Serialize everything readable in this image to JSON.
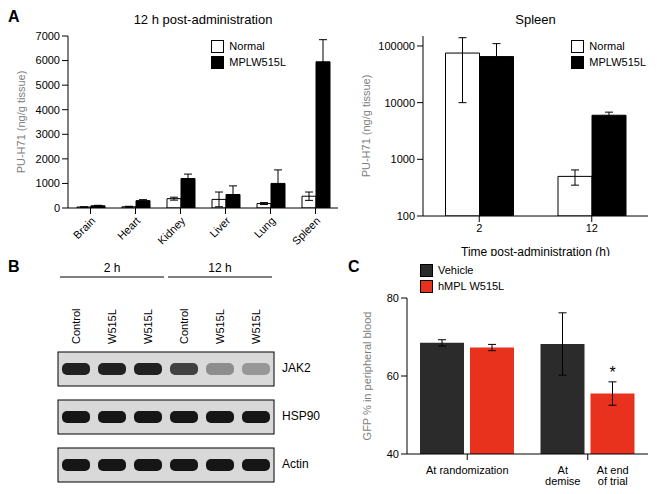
{
  "chart_data": [
    {
      "panel": "A",
      "type": "bar",
      "title": "12 h post-administration",
      "y_label": "PU-H71 (ng/g tissue)",
      "categories": [
        "Brain",
        "Heart",
        "Kidney",
        "Liver",
        "Lung",
        "Spleen"
      ],
      "series": [
        {
          "name": "Normal",
          "color": "#ffffff",
          "values": [
            40,
            50,
            380,
            350,
            180,
            480
          ],
          "errors": [
            10,
            20,
            60,
            300,
            40,
            170
          ]
        },
        {
          "name": "MPLW515L",
          "color": "#000000",
          "values": [
            90,
            300,
            1200,
            550,
            1000,
            5950
          ],
          "errors": [
            20,
            40,
            180,
            350,
            550,
            900
          ]
        }
      ],
      "ylim": [
        0,
        7000
      ],
      "yticks": [
        0,
        1000,
        2000,
        3000,
        4000,
        5000,
        6000,
        7000
      ],
      "legend": "upper right"
    },
    {
      "type": "bar",
      "title": "Spleen",
      "x_label": "Time post-administration (h)",
      "y_label": "PU-H71 (ng/g tissue)",
      "categories": [
        "2",
        "12"
      ],
      "series": [
        {
          "name": "Normal",
          "color": "#ffffff",
          "values": [
            75000,
            500
          ],
          "errors": [
            65000,
            150
          ]
        },
        {
          "name": "MPLW515L",
          "color": "#000000",
          "values": [
            65000,
            6000
          ],
          "errors": [
            45000,
            800
          ]
        }
      ],
      "log": "y",
      "ylim": [
        100,
        150000
      ],
      "yticks": [
        100,
        1000,
        10000,
        100000
      ],
      "legend": "upper right"
    },
    {
      "panel": "C",
      "type": "bar",
      "y_label": "GFP % in peripheral blood",
      "categories": [
        "At randomization",
        null
      ],
      "sub_labels": [
        "At demise",
        "At end of trial"
      ],
      "series": [
        {
          "name": "Vehicle",
          "color": "#2b2b2b",
          "values": [
            68.5,
            68.2
          ],
          "errors": [
            0.8,
            8
          ]
        },
        {
          "name": "hMPL W515L",
          "color": "#e8321e",
          "values": [
            67.3,
            55.5
          ],
          "errors": [
            0.8,
            3
          ]
        }
      ],
      "annotations": [
        {
          "text": "*",
          "series": "hMPL W515L",
          "index": 1
        }
      ],
      "ylim": [
        40,
        80
      ],
      "yticks": [
        40,
        60,
        80
      ],
      "legend": "upper left"
    }
  ],
  "western_blot": {
    "panel": "B",
    "groups": [
      {
        "label": "2 h",
        "lanes": [
          "Control",
          "W515L",
          "W515L"
        ]
      },
      {
        "label": "12 h",
        "lanes": [
          "Control",
          "W515L",
          "W515L"
        ]
      }
    ],
    "rows": [
      {
        "label": "JAK2",
        "intensity": [
          0.85,
          0.85,
          0.85,
          0.7,
          0.35,
          0.3
        ]
      },
      {
        "label": "HSP90",
        "intensity": [
          0.9,
          0.9,
          0.9,
          0.9,
          0.9,
          0.9
        ]
      },
      {
        "label": "Actin",
        "intensity": [
          0.9,
          0.9,
          0.9,
          0.9,
          0.9,
          0.9
        ]
      }
    ]
  }
}
